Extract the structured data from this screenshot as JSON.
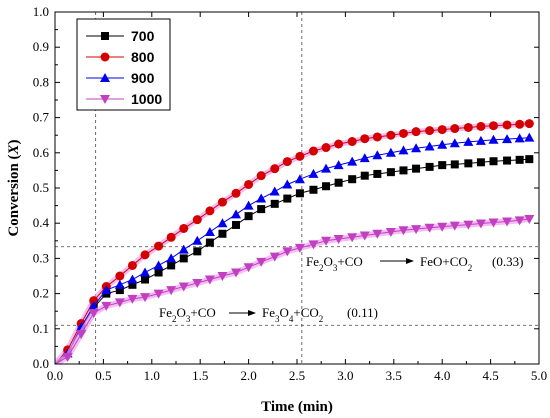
{
  "chart_data": {
    "type": "line",
    "xlabel": "Time (min)",
    "ylabel": "Conversion (X)",
    "xlim": [
      0,
      5.0
    ],
    "ylim": [
      0,
      1.0
    ],
    "xticks": [
      "0.0",
      "0.5",
      "1.0",
      "1.5",
      "2.0",
      "2.5",
      "3.0",
      "3.5",
      "4.0",
      "4.5",
      "5.0"
    ],
    "yticks": [
      "0.0",
      "0.1",
      "0.2",
      "0.3",
      "0.4",
      "0.5",
      "0.6",
      "0.7",
      "0.8",
      "0.9",
      "1.0"
    ],
    "legend_position": "top-left",
    "x": [
      0.0,
      0.13,
      0.27,
      0.4,
      0.53,
      0.67,
      0.8,
      0.93,
      1.07,
      1.2,
      1.33,
      1.47,
      1.6,
      1.73,
      1.87,
      2.0,
      2.13,
      2.27,
      2.4,
      2.53,
      2.67,
      2.8,
      2.93,
      3.07,
      3.2,
      3.33,
      3.47,
      3.6,
      3.73,
      3.87,
      4.0,
      4.13,
      4.27,
      4.4,
      4.53,
      4.67,
      4.8,
      4.9
    ],
    "series": [
      {
        "name": "700",
        "marker": "square",
        "color": "#000000",
        "values": [
          0.0,
          0.03,
          0.1,
          0.16,
          0.2,
          0.21,
          0.225,
          0.24,
          0.26,
          0.28,
          0.3,
          0.32,
          0.345,
          0.37,
          0.395,
          0.42,
          0.44,
          0.455,
          0.47,
          0.485,
          0.495,
          0.505,
          0.515,
          0.525,
          0.535,
          0.54,
          0.545,
          0.55,
          0.555,
          0.56,
          0.565,
          0.567,
          0.57,
          0.573,
          0.576,
          0.578,
          0.58,
          0.582
        ]
      },
      {
        "name": "800",
        "marker": "circle",
        "color": "#d40000",
        "values": [
          0.0,
          0.04,
          0.115,
          0.18,
          0.22,
          0.25,
          0.28,
          0.31,
          0.335,
          0.36,
          0.385,
          0.41,
          0.435,
          0.46,
          0.485,
          0.51,
          0.535,
          0.555,
          0.575,
          0.59,
          0.605,
          0.615,
          0.625,
          0.632,
          0.64,
          0.645,
          0.65,
          0.655,
          0.66,
          0.663,
          0.666,
          0.669,
          0.672,
          0.675,
          0.677,
          0.679,
          0.681,
          0.683
        ]
      },
      {
        "name": "900",
        "marker": "triangle-up",
        "color": "#0000ee",
        "values": [
          0.0,
          0.03,
          0.105,
          0.165,
          0.21,
          0.225,
          0.24,
          0.26,
          0.28,
          0.3,
          0.325,
          0.35,
          0.375,
          0.4,
          0.425,
          0.45,
          0.47,
          0.49,
          0.51,
          0.525,
          0.54,
          0.555,
          0.565,
          0.575,
          0.585,
          0.593,
          0.6,
          0.607,
          0.613,
          0.618,
          0.623,
          0.627,
          0.631,
          0.634,
          0.637,
          0.639,
          0.641,
          0.643
        ]
      },
      {
        "name": "1000",
        "marker": "triangle-down",
        "color": "#c040c0",
        "values": [
          0.0,
          0.02,
          0.085,
          0.145,
          0.165,
          0.175,
          0.185,
          0.19,
          0.2,
          0.21,
          0.22,
          0.23,
          0.24,
          0.25,
          0.26,
          0.275,
          0.29,
          0.305,
          0.32,
          0.33,
          0.34,
          0.35,
          0.355,
          0.36,
          0.365,
          0.37,
          0.375,
          0.38,
          0.383,
          0.387,
          0.39,
          0.393,
          0.396,
          0.399,
          0.402,
          0.405,
          0.408,
          0.412
        ]
      }
    ],
    "reference_lines": [
      {
        "orientation": "vertical",
        "value": 0.42
      },
      {
        "orientation": "vertical",
        "value": 2.55
      },
      {
        "orientation": "horizontal",
        "value": 0.333
      },
      {
        "orientation": "horizontal",
        "value": 0.11
      }
    ],
    "annotations": {
      "reaction_high": {
        "lhs": "Fe2O3+CO",
        "rhs": "FeO+CO2",
        "value": "(0.33)"
      },
      "reaction_low": {
        "lhs": "Fe2O3+CO",
        "rhs": "Fe3O4+CO2",
        "value": "(0.11)"
      }
    }
  }
}
